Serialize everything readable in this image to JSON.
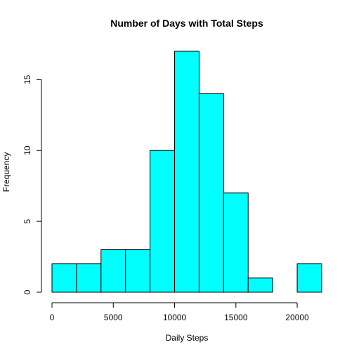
{
  "chart_data": {
    "type": "bar",
    "title": "Number of Days with Total Steps",
    "xlabel": "Daily Steps",
    "ylabel": "Frequency",
    "bins": [
      {
        "start": 0,
        "end": 2000,
        "count": 2
      },
      {
        "start": 2000,
        "end": 4000,
        "count": 2
      },
      {
        "start": 4000,
        "end": 6000,
        "count": 3
      },
      {
        "start": 6000,
        "end": 8000,
        "count": 3
      },
      {
        "start": 8000,
        "end": 10000,
        "count": 10
      },
      {
        "start": 10000,
        "end": 12000,
        "count": 17
      },
      {
        "start": 12000,
        "end": 14000,
        "count": 14
      },
      {
        "start": 14000,
        "end": 16000,
        "count": 7
      },
      {
        "start": 16000,
        "end": 18000,
        "count": 1
      },
      {
        "start": 18000,
        "end": 20000,
        "count": 0
      },
      {
        "start": 20000,
        "end": 22000,
        "count": 2
      }
    ],
    "xlim": [
      0,
      22000
    ],
    "ylim": [
      0,
      17
    ],
    "xticks": [
      0,
      5000,
      10000,
      15000,
      20000
    ],
    "yticks": [
      0,
      5,
      10,
      15
    ],
    "bar_color": "#00FFFF",
    "border_color": "#000000",
    "grid": false,
    "legend": "none"
  }
}
